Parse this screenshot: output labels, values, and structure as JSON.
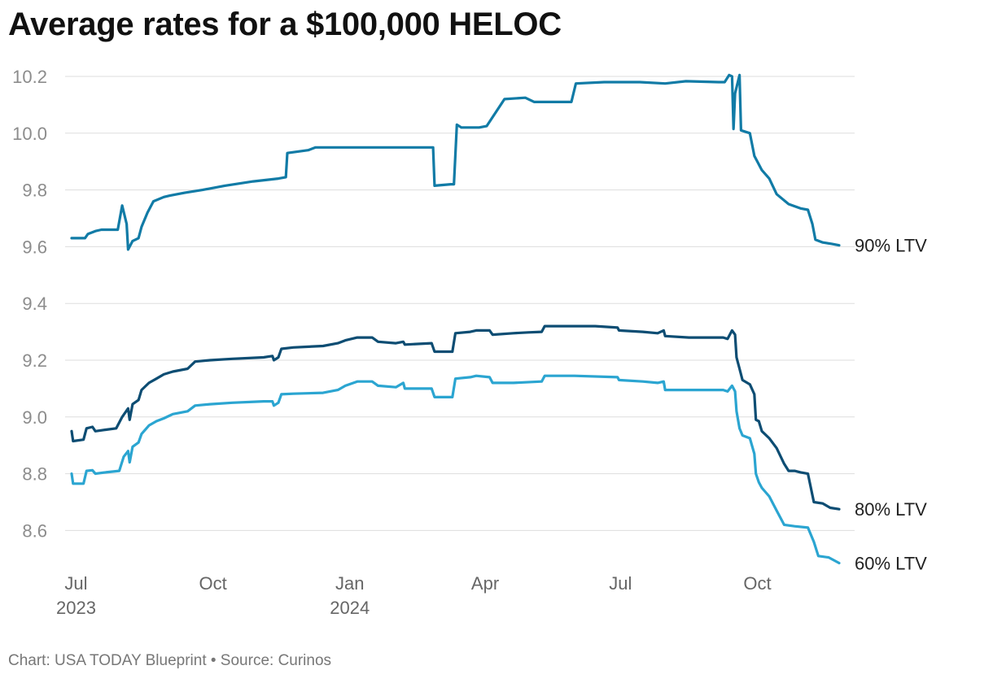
{
  "chart_data": {
    "type": "line",
    "title": "Average rates for a $100,000 HELOC",
    "footer": "Chart: USA TODAY Blueprint • Source: Curinos",
    "xlabel": "",
    "ylabel": "",
    "x_range": [
      "2023-06-28",
      "2024-11-25"
    ],
    "ylim": [
      8.47,
      10.23
    ],
    "y_ticks": [
      "10.2",
      "10.0",
      "9.8",
      "9.6",
      "9.4",
      "9.2",
      "9.0",
      "8.8",
      "8.6"
    ],
    "x_ticks": [
      {
        "date": "2023-07-01",
        "label": "Jul",
        "sublabel": "2023"
      },
      {
        "date": "2023-10-01",
        "label": "Oct",
        "sublabel": ""
      },
      {
        "date": "2024-01-01",
        "label": "Jan",
        "sublabel": "2024"
      },
      {
        "date": "2024-04-01",
        "label": "Apr",
        "sublabel": ""
      },
      {
        "date": "2024-07-01",
        "label": "Jul",
        "sublabel": ""
      },
      {
        "date": "2024-10-01",
        "label": "Oct",
        "sublabel": ""
      }
    ],
    "grid": true,
    "legend": "inline labels at line ends",
    "series": [
      {
        "name": "90% LTV",
        "color": "#117ba6",
        "points": [
          [
            "2023-06-28",
            9.63
          ],
          [
            "2023-07-07",
            9.63
          ],
          [
            "2023-07-09",
            9.645
          ],
          [
            "2023-07-14",
            9.655
          ],
          [
            "2023-07-18",
            9.66
          ],
          [
            "2023-07-29",
            9.66
          ],
          [
            "2023-08-01",
            9.745
          ],
          [
            "2023-08-04",
            9.68
          ],
          [
            "2023-08-05",
            9.59
          ],
          [
            "2023-08-08",
            9.62
          ],
          [
            "2023-08-12",
            9.63
          ],
          [
            "2023-08-14",
            9.67
          ],
          [
            "2023-08-18",
            9.72
          ],
          [
            "2023-08-22",
            9.76
          ],
          [
            "2023-08-29",
            9.775
          ],
          [
            "2023-09-02",
            9.78
          ],
          [
            "2023-09-12",
            9.79
          ],
          [
            "2023-09-24",
            9.8
          ],
          [
            "2023-10-09",
            9.815
          ],
          [
            "2023-10-28",
            9.83
          ],
          [
            "2023-11-14",
            9.84
          ],
          [
            "2023-11-19",
            9.845
          ],
          [
            "2023-11-20",
            9.93
          ],
          [
            "2023-12-04",
            9.94
          ],
          [
            "2023-12-09",
            9.95
          ],
          [
            "2024-01-01",
            9.95
          ],
          [
            "2024-01-14",
            9.95
          ],
          [
            "2024-02-14",
            9.95
          ],
          [
            "2024-02-26",
            9.95
          ],
          [
            "2024-02-27",
            9.815
          ],
          [
            "2024-03-09",
            9.82
          ],
          [
            "2024-03-11",
            9.82
          ],
          [
            "2024-03-13",
            10.03
          ],
          [
            "2024-03-16",
            10.02
          ],
          [
            "2024-03-28",
            10.02
          ],
          [
            "2024-04-02",
            10.025
          ],
          [
            "2024-04-14",
            10.12
          ],
          [
            "2024-04-28",
            10.125
          ],
          [
            "2024-05-04",
            10.11
          ],
          [
            "2024-05-29",
            10.11
          ],
          [
            "2024-06-01",
            10.175
          ],
          [
            "2024-06-20",
            10.18
          ],
          [
            "2024-07-14",
            10.18
          ],
          [
            "2024-07-31",
            10.175
          ],
          [
            "2024-08-14",
            10.183
          ],
          [
            "2024-09-05",
            10.18
          ],
          [
            "2024-09-09",
            10.18
          ],
          [
            "2024-09-12",
            10.205
          ],
          [
            "2024-09-14",
            10.2
          ],
          [
            "2024-09-15",
            10.015
          ],
          [
            "2024-09-16",
            10.14
          ],
          [
            "2024-09-19",
            10.205
          ],
          [
            "2024-09-20",
            10.01
          ],
          [
            "2024-09-26",
            10.0
          ],
          [
            "2024-09-29",
            9.92
          ],
          [
            "2024-10-01",
            9.9
          ],
          [
            "2024-10-04",
            9.87
          ],
          [
            "2024-10-09",
            9.84
          ],
          [
            "2024-10-14",
            9.785
          ],
          [
            "2024-10-22",
            9.75
          ],
          [
            "2024-10-30",
            9.735
          ],
          [
            "2024-11-04",
            9.73
          ],
          [
            "2024-11-07",
            9.68
          ],
          [
            "2024-11-09",
            9.625
          ],
          [
            "2024-11-14",
            9.615
          ],
          [
            "2024-11-20",
            9.61
          ],
          [
            "2024-11-25",
            9.605
          ]
        ]
      },
      {
        "name": "80% LTV",
        "color": "#0d4d73",
        "points": [
          [
            "2023-06-28",
            8.95
          ],
          [
            "2023-06-29",
            8.915
          ],
          [
            "2023-07-06",
            8.92
          ],
          [
            "2023-07-08",
            8.96
          ],
          [
            "2023-07-12",
            8.965
          ],
          [
            "2023-07-14",
            8.95
          ],
          [
            "2023-07-21",
            8.955
          ],
          [
            "2023-07-28",
            8.96
          ],
          [
            "2023-08-01",
            9.0
          ],
          [
            "2023-08-05",
            9.03
          ],
          [
            "2023-08-06",
            8.99
          ],
          [
            "2023-08-08",
            9.045
          ],
          [
            "2023-08-12",
            9.06
          ],
          [
            "2023-08-14",
            9.095
          ],
          [
            "2023-08-19",
            9.12
          ],
          [
            "2023-08-24",
            9.135
          ],
          [
            "2023-08-29",
            9.15
          ],
          [
            "2023-09-04",
            9.16
          ],
          [
            "2023-09-14",
            9.17
          ],
          [
            "2023-09-19",
            9.195
          ],
          [
            "2023-09-29",
            9.2
          ],
          [
            "2023-10-14",
            9.205
          ],
          [
            "2023-11-04",
            9.21
          ],
          [
            "2023-11-10",
            9.215
          ],
          [
            "2023-11-11",
            9.2
          ],
          [
            "2023-11-14",
            9.21
          ],
          [
            "2023-11-16",
            9.24
          ],
          [
            "2023-11-24",
            9.245
          ],
          [
            "2023-12-14",
            9.25
          ],
          [
            "2023-12-24",
            9.26
          ],
          [
            "2023-12-29",
            9.27
          ],
          [
            "2024-01-06",
            9.28
          ],
          [
            "2024-01-16",
            9.28
          ],
          [
            "2024-01-20",
            9.265
          ],
          [
            "2024-02-01",
            9.26
          ],
          [
            "2024-02-06",
            9.265
          ],
          [
            "2024-02-07",
            9.255
          ],
          [
            "2024-02-25",
            9.26
          ],
          [
            "2024-02-27",
            9.23
          ],
          [
            "2024-03-10",
            9.23
          ],
          [
            "2024-03-12",
            9.295
          ],
          [
            "2024-03-22",
            9.3
          ],
          [
            "2024-03-26",
            9.305
          ],
          [
            "2024-04-04",
            9.305
          ],
          [
            "2024-04-06",
            9.29
          ],
          [
            "2024-04-20",
            9.295
          ],
          [
            "2024-04-30",
            9.298
          ],
          [
            "2024-05-09",
            9.3
          ],
          [
            "2024-05-11",
            9.32
          ],
          [
            "2024-05-31",
            9.32
          ],
          [
            "2024-06-14",
            9.32
          ],
          [
            "2024-06-29",
            9.315
          ],
          [
            "2024-06-30",
            9.305
          ],
          [
            "2024-07-16",
            9.3
          ],
          [
            "2024-07-26",
            9.295
          ],
          [
            "2024-07-30",
            9.305
          ],
          [
            "2024-07-31",
            9.285
          ],
          [
            "2024-08-16",
            9.28
          ],
          [
            "2024-09-08",
            9.28
          ],
          [
            "2024-09-11",
            9.275
          ],
          [
            "2024-09-14",
            9.305
          ],
          [
            "2024-09-16",
            9.29
          ],
          [
            "2024-09-17",
            9.21
          ],
          [
            "2024-09-19",
            9.17
          ],
          [
            "2024-09-21",
            9.13
          ],
          [
            "2024-09-26",
            9.115
          ],
          [
            "2024-09-29",
            9.08
          ],
          [
            "2024-09-30",
            8.99
          ],
          [
            "2024-10-02",
            8.985
          ],
          [
            "2024-10-04",
            8.95
          ],
          [
            "2024-10-09",
            8.925
          ],
          [
            "2024-10-14",
            8.89
          ],
          [
            "2024-10-19",
            8.835
          ],
          [
            "2024-10-22",
            8.81
          ],
          [
            "2024-10-26",
            8.81
          ],
          [
            "2024-10-30",
            8.805
          ],
          [
            "2024-11-04",
            8.8
          ],
          [
            "2024-11-08",
            8.7
          ],
          [
            "2024-11-14",
            8.695
          ],
          [
            "2024-11-19",
            8.68
          ],
          [
            "2024-11-25",
            8.675
          ]
        ]
      },
      {
        "name": "60% LTV",
        "color": "#2ba5d1",
        "points": [
          [
            "2023-06-28",
            8.8
          ],
          [
            "2023-06-29",
            8.765
          ],
          [
            "2023-07-06",
            8.765
          ],
          [
            "2023-07-08",
            8.81
          ],
          [
            "2023-07-12",
            8.812
          ],
          [
            "2023-07-14",
            8.8
          ],
          [
            "2023-07-21",
            8.805
          ],
          [
            "2023-07-30",
            8.81
          ],
          [
            "2023-08-02",
            8.86
          ],
          [
            "2023-08-05",
            8.88
          ],
          [
            "2023-08-06",
            8.84
          ],
          [
            "2023-08-08",
            8.895
          ],
          [
            "2023-08-12",
            8.91
          ],
          [
            "2023-08-14",
            8.94
          ],
          [
            "2023-08-19",
            8.97
          ],
          [
            "2023-08-24",
            8.985
          ],
          [
            "2023-08-29",
            8.995
          ],
          [
            "2023-09-04",
            9.01
          ],
          [
            "2023-09-14",
            9.02
          ],
          [
            "2023-09-19",
            9.04
          ],
          [
            "2023-09-29",
            9.045
          ],
          [
            "2023-10-14",
            9.05
          ],
          [
            "2023-11-04",
            9.055
          ],
          [
            "2023-11-10",
            9.055
          ],
          [
            "2023-11-11",
            9.04
          ],
          [
            "2023-11-14",
            9.05
          ],
          [
            "2023-11-16",
            9.08
          ],
          [
            "2023-11-24",
            9.082
          ],
          [
            "2023-12-14",
            9.085
          ],
          [
            "2023-12-24",
            9.095
          ],
          [
            "2023-12-29",
            9.11
          ],
          [
            "2024-01-06",
            9.125
          ],
          [
            "2024-01-16",
            9.125
          ],
          [
            "2024-01-20",
            9.11
          ],
          [
            "2024-02-01",
            9.105
          ],
          [
            "2024-02-06",
            9.12
          ],
          [
            "2024-02-07",
            9.1
          ],
          [
            "2024-02-25",
            9.1
          ],
          [
            "2024-02-27",
            9.07
          ],
          [
            "2024-03-10",
            9.07
          ],
          [
            "2024-03-12",
            9.135
          ],
          [
            "2024-03-22",
            9.14
          ],
          [
            "2024-03-26",
            9.145
          ],
          [
            "2024-04-04",
            9.14
          ],
          [
            "2024-04-06",
            9.12
          ],
          [
            "2024-04-20",
            9.12
          ],
          [
            "2024-05-09",
            9.125
          ],
          [
            "2024-05-11",
            9.145
          ],
          [
            "2024-05-31",
            9.145
          ],
          [
            "2024-06-29",
            9.14
          ],
          [
            "2024-06-30",
            9.13
          ],
          [
            "2024-07-16",
            9.125
          ],
          [
            "2024-07-26",
            9.12
          ],
          [
            "2024-07-30",
            9.125
          ],
          [
            "2024-07-31",
            9.095
          ],
          [
            "2024-08-16",
            9.095
          ],
          [
            "2024-09-08",
            9.095
          ],
          [
            "2024-09-11",
            9.09
          ],
          [
            "2024-09-14",
            9.11
          ],
          [
            "2024-09-16",
            9.09
          ],
          [
            "2024-09-17",
            9.02
          ],
          [
            "2024-09-19",
            8.96
          ],
          [
            "2024-09-21",
            8.935
          ],
          [
            "2024-09-26",
            8.925
          ],
          [
            "2024-09-29",
            8.87
          ],
          [
            "2024-09-30",
            8.8
          ],
          [
            "2024-10-02",
            8.77
          ],
          [
            "2024-10-04",
            8.75
          ],
          [
            "2024-10-09",
            8.72
          ],
          [
            "2024-10-14",
            8.67
          ],
          [
            "2024-10-19",
            8.62
          ],
          [
            "2024-10-26",
            8.615
          ],
          [
            "2024-11-04",
            8.61
          ],
          [
            "2024-11-08",
            8.56
          ],
          [
            "2024-11-11",
            8.51
          ],
          [
            "2024-11-18",
            8.505
          ],
          [
            "2024-11-25",
            8.485
          ]
        ]
      }
    ]
  }
}
